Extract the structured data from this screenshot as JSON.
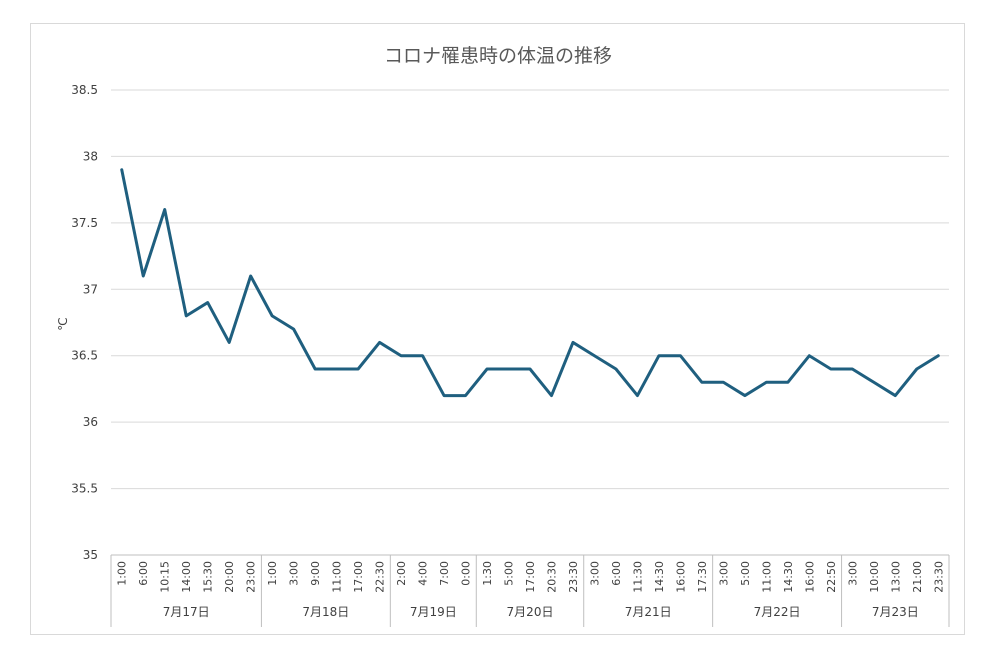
{
  "chart_data": {
    "type": "line",
    "title": "コロナ罹患時の体温の推移",
    "ylabel": "℃",
    "xlabel": "",
    "ylim": [
      35,
      38.5
    ],
    "ytick_labels": [
      "35",
      "35.5",
      "36",
      "36.5",
      "37",
      "37.5",
      "38",
      "38.5"
    ],
    "grid": true,
    "legend": "none",
    "line_color": "#1f5f7f",
    "groups": [
      {
        "label": "7月17日",
        "times": [
          "1:00",
          "6:00",
          "10:15",
          "14:00",
          "15:30",
          "20:00",
          "23:00"
        ]
      },
      {
        "label": "7月18日",
        "times": [
          "1:00",
          "3:00",
          "9:00",
          "11:00",
          "17:00",
          "22:30"
        ]
      },
      {
        "label": "7月19日",
        "times": [
          "2:00",
          "4:00",
          "7:00",
          "0:00"
        ]
      },
      {
        "label": "7月20日",
        "times": [
          "1:30",
          "5:00",
          "17:00",
          "20:30",
          "23:30"
        ]
      },
      {
        "label": "7月21日",
        "times": [
          "3:00",
          "6:00",
          "11:30",
          "14:30",
          "16:00",
          "17:30"
        ]
      },
      {
        "label": "7月22日",
        "times": [
          "3:00",
          "5:00",
          "11:00",
          "14:30",
          "16:00",
          "22:50"
        ]
      },
      {
        "label": "7月23日",
        "times": [
          "3:00",
          "10:00",
          "13:00",
          "21:00",
          "23:30"
        ]
      }
    ],
    "values": [
      37.9,
      37.1,
      37.6,
      36.8,
      36.9,
      36.6,
      37.1,
      36.8,
      36.7,
      36.4,
      36.4,
      36.4,
      36.6,
      36.5,
      36.5,
      36.2,
      36.2,
      36.4,
      36.4,
      36.4,
      36.2,
      36.6,
      36.5,
      36.4,
      36.2,
      36.5,
      36.5,
      36.3,
      36.3,
      36.2,
      36.3,
      36.3,
      36.5,
      36.4,
      36.4,
      36.3,
      36.2,
      36.4,
      36.5
    ]
  }
}
